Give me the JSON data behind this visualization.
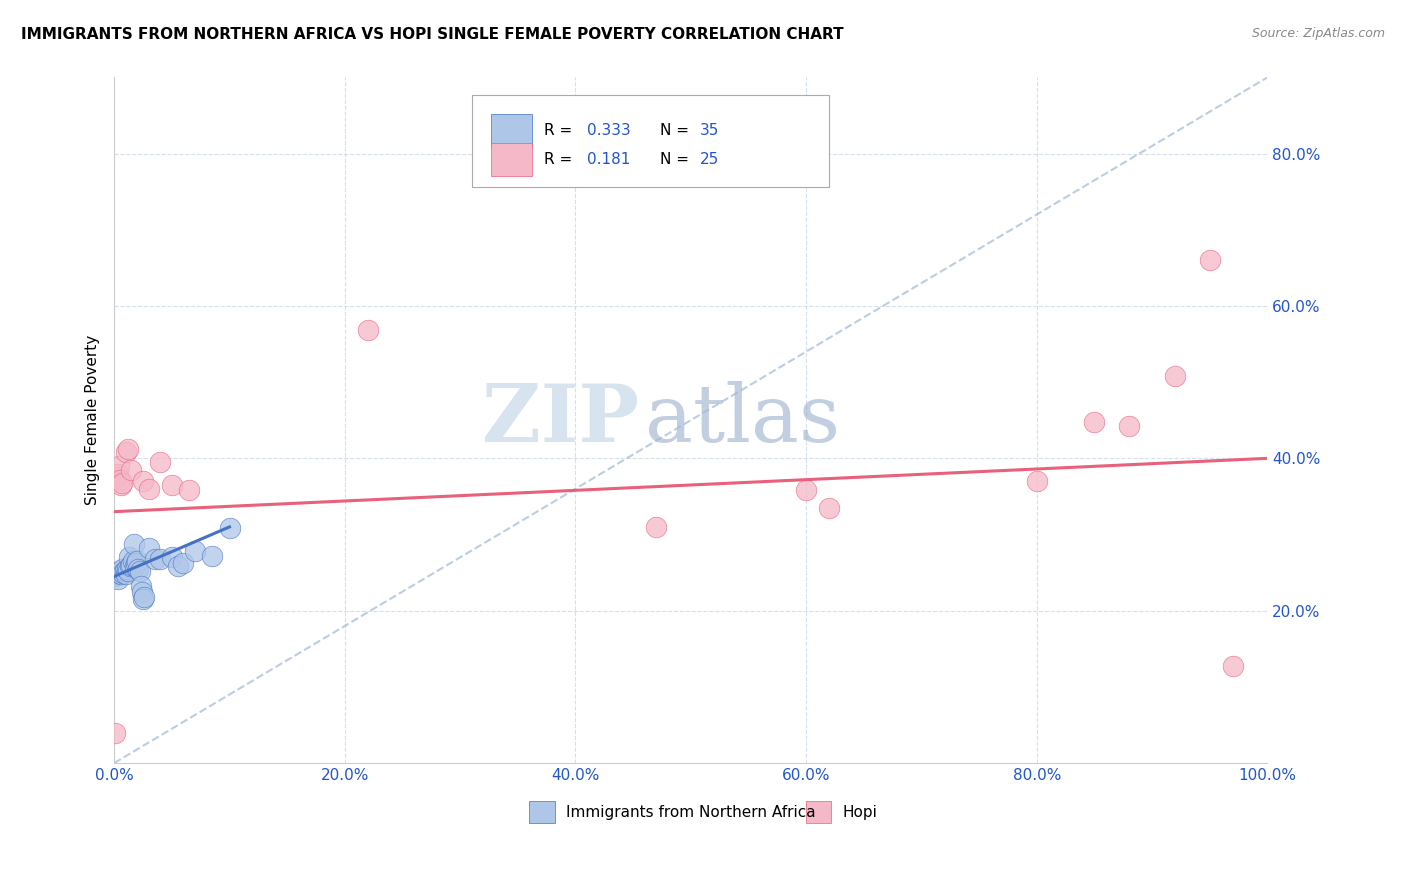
{
  "title": "IMMIGRANTS FROM NORTHERN AFRICA VS HOPI SINGLE FEMALE POVERTY CORRELATION CHART",
  "source": "Source: ZipAtlas.com",
  "ylabel": "Single Female Poverty",
  "legend_label1": "Immigrants from Northern Africa",
  "legend_label2": "Hopi",
  "r1": "0.333",
  "n1": "35",
  "r2": "0.181",
  "n2": "25",
  "color_blue": "#aec6e8",
  "color_pink": "#f5b8c8",
  "line_blue": "#4472c4",
  "line_pink": "#e8607a",
  "line_diag": "#a0b8d8",
  "watermark_zip": "ZIP",
  "watermark_atlas": "atlas",
  "blue_points": [
    [
      0.001,
      0.245
    ],
    [
      0.002,
      0.248
    ],
    [
      0.003,
      0.242
    ],
    [
      0.004,
      0.25
    ],
    [
      0.005,
      0.252
    ],
    [
      0.006,
      0.248
    ],
    [
      0.007,
      0.255
    ],
    [
      0.008,
      0.25
    ],
    [
      0.009,
      0.252
    ],
    [
      0.01,
      0.248
    ],
    [
      0.011,
      0.255
    ],
    [
      0.012,
      0.252
    ],
    [
      0.013,
      0.27
    ],
    [
      0.014,
      0.258
    ],
    [
      0.015,
      0.26
    ],
    [
      0.016,
      0.265
    ],
    [
      0.017,
      0.288
    ],
    [
      0.018,
      0.258
    ],
    [
      0.019,
      0.262
    ],
    [
      0.02,
      0.265
    ],
    [
      0.021,
      0.255
    ],
    [
      0.022,
      0.252
    ],
    [
      0.023,
      0.232
    ],
    [
      0.024,
      0.225
    ],
    [
      0.025,
      0.215
    ],
    [
      0.026,
      0.218
    ],
    [
      0.03,
      0.282
    ],
    [
      0.035,
      0.268
    ],
    [
      0.04,
      0.268
    ],
    [
      0.05,
      0.27
    ],
    [
      0.055,
      0.258
    ],
    [
      0.06,
      0.262
    ],
    [
      0.07,
      0.278
    ],
    [
      0.085,
      0.272
    ],
    [
      0.1,
      0.308
    ]
  ],
  "pink_points": [
    [
      0.001,
      0.04
    ],
    [
      0.002,
      0.375
    ],
    [
      0.003,
      0.38
    ],
    [
      0.004,
      0.39
    ],
    [
      0.005,
      0.372
    ],
    [
      0.006,
      0.365
    ],
    [
      0.007,
      0.368
    ],
    [
      0.01,
      0.408
    ],
    [
      0.012,
      0.412
    ],
    [
      0.015,
      0.385
    ],
    [
      0.025,
      0.37
    ],
    [
      0.03,
      0.36
    ],
    [
      0.04,
      0.395
    ],
    [
      0.05,
      0.365
    ],
    [
      0.065,
      0.358
    ],
    [
      0.22,
      0.568
    ],
    [
      0.47,
      0.31
    ],
    [
      0.6,
      0.358
    ],
    [
      0.62,
      0.335
    ],
    [
      0.8,
      0.37
    ],
    [
      0.85,
      0.448
    ],
    [
      0.88,
      0.442
    ],
    [
      0.92,
      0.508
    ],
    [
      0.95,
      0.66
    ],
    [
      0.97,
      0.128
    ]
  ],
  "xlim": [
    0.0,
    1.0
  ],
  "ylim": [
    0.0,
    0.9
  ],
  "yticks": [
    0.2,
    0.4,
    0.6,
    0.8
  ],
  "ytick_labels": [
    "20.0%",
    "40.0%",
    "60.0%",
    "80.0%"
  ],
  "xtick_vals": [
    0.0,
    0.2,
    0.4,
    0.6,
    0.8,
    1.0
  ],
  "xtick_labels": [
    "0.0%",
    "20.0%",
    "40.0%",
    "60.0%",
    "80.0%",
    "100.0%"
  ],
  "blue_line_x": [
    0.0,
    0.1
  ],
  "blue_line_y": [
    0.245,
    0.31
  ],
  "pink_line_x": [
    0.0,
    1.0
  ],
  "pink_line_y": [
    0.33,
    0.4
  ],
  "diag_line_x": [
    0.0,
    1.0
  ],
  "diag_line_y": [
    0.0,
    0.9
  ]
}
